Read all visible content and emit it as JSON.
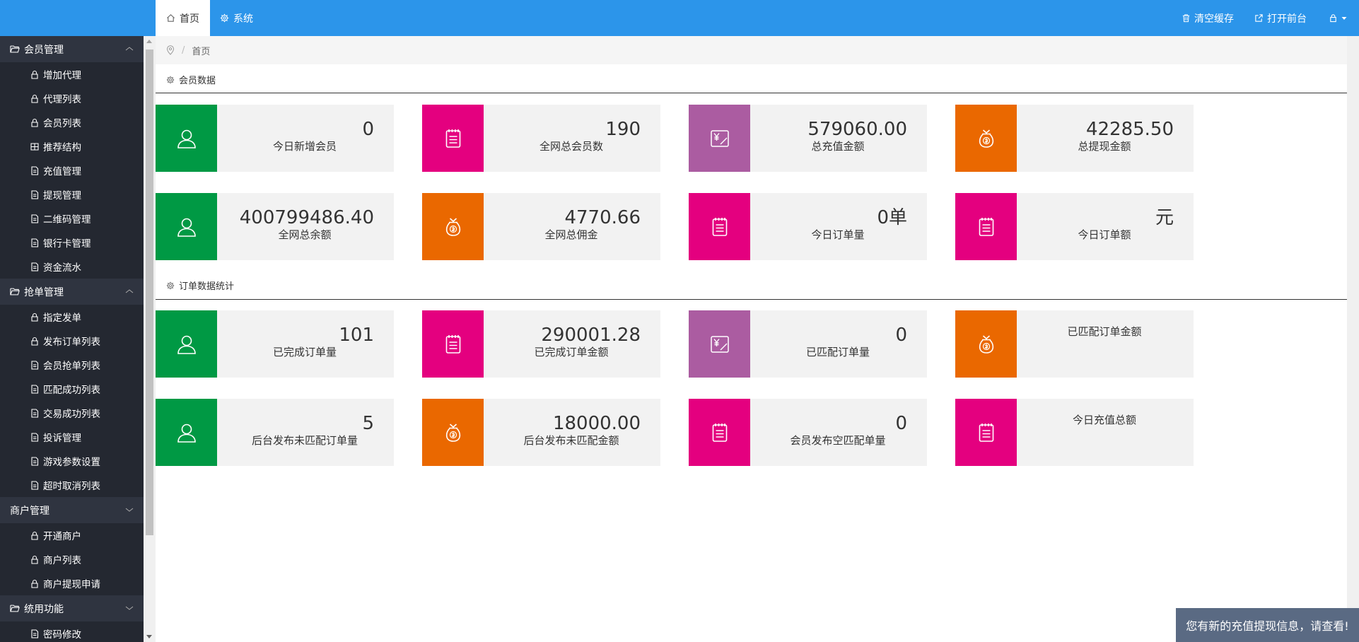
{
  "header": {
    "tabs": [
      {
        "label": "首页",
        "icon": "home-icon",
        "active": true
      },
      {
        "label": "系统",
        "icon": "gear-icon",
        "active": false
      }
    ],
    "right": {
      "clear_cache": "清空缓存",
      "open_frontend": "打开前台"
    }
  },
  "sidebar": {
    "groups": [
      {
        "label": "会员管理",
        "items": [
          "增加代理",
          "代理列表",
          "会员列表",
          "推荐结构",
          "充值管理",
          "提现管理",
          "二维码管理",
          "银行卡管理",
          "资金流水"
        ]
      },
      {
        "label": "抢单管理",
        "items": [
          "指定发单",
          "发布订单列表",
          "会员抢单列表",
          "匹配成功列表",
          "交易成功列表",
          "投诉管理",
          "游戏参数设置",
          "超时取消列表"
        ]
      },
      {
        "label": "商户管理",
        "items": [
          "开通商户",
          "商户列表",
          "商户提现申请"
        ]
      },
      {
        "label": "统用功能",
        "items": [
          "密码修改"
        ]
      }
    ]
  },
  "breadcrumb": {
    "current": "首页"
  },
  "sections": {
    "member": {
      "title": "会员数据"
    },
    "order": {
      "title": "订单数据统计"
    }
  },
  "member_cards": [
    {
      "value": "0",
      "label": "今日新增会员",
      "color": "#009944",
      "icon": "user-icon"
    },
    {
      "value": "190",
      "label": "全网总会员数",
      "color": "#e4007f",
      "icon": "clipboard-icon"
    },
    {
      "value": "579060.00",
      "label": "总充值金额",
      "color": "#ab5ca1",
      "icon": "yuan-card-icon"
    },
    {
      "value": "42285.50",
      "label": "总提现金额",
      "color": "#ea6800",
      "icon": "money-bag-icon"
    },
    {
      "value": "400799486.40",
      "label": "全网总余额",
      "color": "#009944",
      "icon": "user-icon"
    },
    {
      "value": "4770.66",
      "label": "全网总佣金",
      "color": "#ea6800",
      "icon": "money-bag-icon"
    },
    {
      "value": "0单",
      "label": "今日订单量",
      "color": "#e4007f",
      "icon": "clipboard-icon"
    },
    {
      "value": "元",
      "label": "今日订单额",
      "color": "#e4007f",
      "icon": "clipboard-icon"
    }
  ],
  "order_cards": [
    {
      "value": "101",
      "label": "已完成订单量",
      "color": "#009944",
      "icon": "user-icon"
    },
    {
      "value": "290001.28",
      "label": "已完成订单金额",
      "color": "#e4007f",
      "icon": "clipboard-icon"
    },
    {
      "value": "0",
      "label": "已匹配订单量",
      "color": "#ab5ca1",
      "icon": "yuan-card-icon"
    },
    {
      "value": "",
      "label": "已匹配订单金额",
      "color": "#ea6800",
      "icon": "money-bag-icon"
    },
    {
      "value": "5",
      "label": "后台发布未匹配订单量",
      "color": "#009944",
      "icon": "user-icon"
    },
    {
      "value": "18000.00",
      "label": "后台发布未匹配金额",
      "color": "#ea6800",
      "icon": "money-bag-icon"
    },
    {
      "value": "0",
      "label": "会员发布空匹配单量",
      "color": "#e4007f",
      "icon": "clipboard-icon"
    },
    {
      "value": "",
      "label": "今日充值总额",
      "color": "#e4007f",
      "icon": "clipboard-icon"
    }
  ],
  "toast": {
    "text": "您有新的充值提现信息，请查看!"
  }
}
